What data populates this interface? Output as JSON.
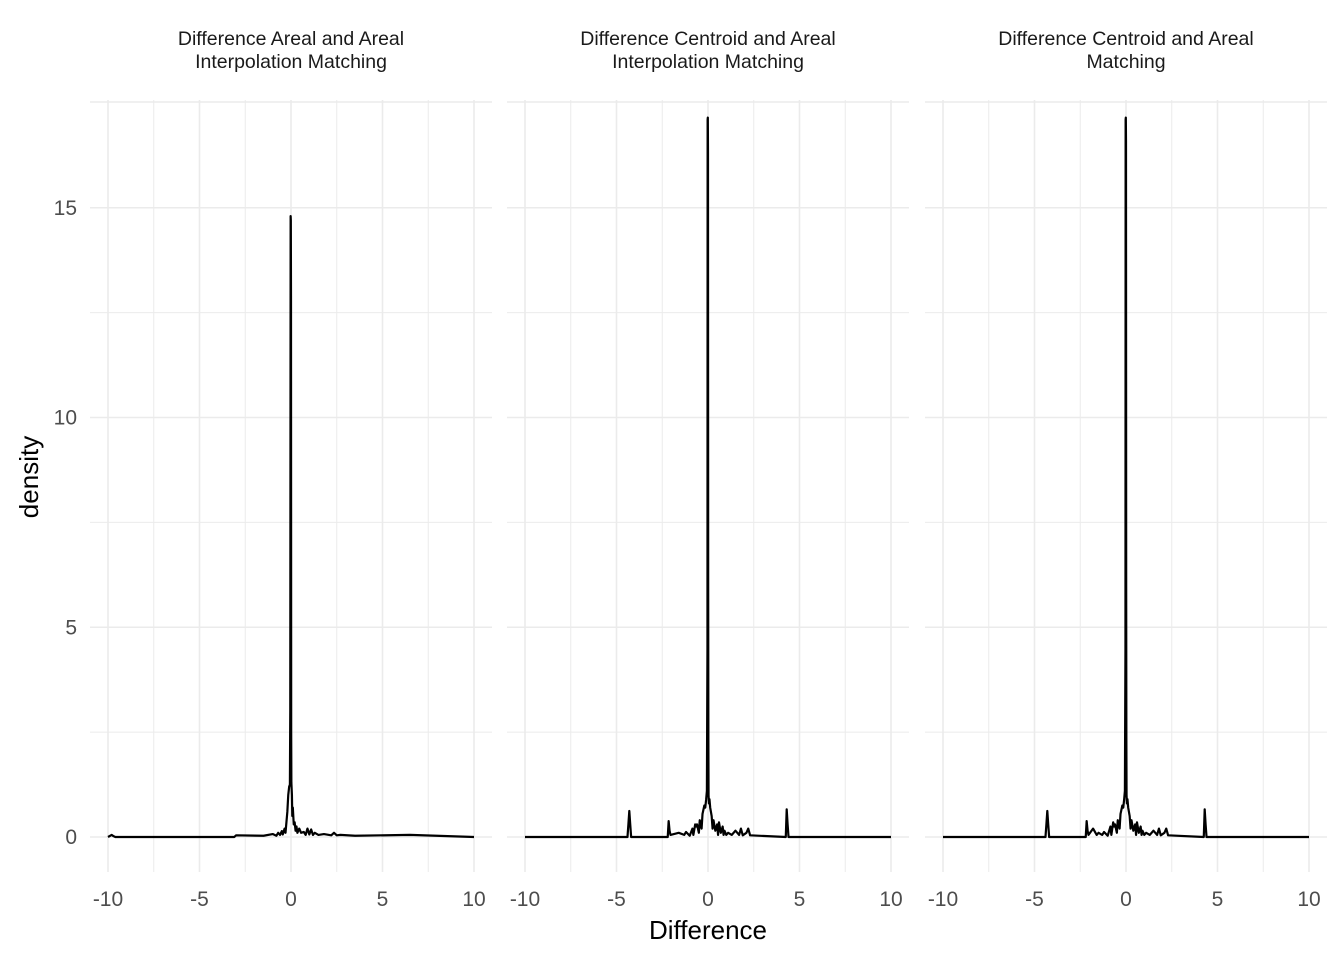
{
  "chart_data": {
    "type": "line",
    "xlabel": "Difference",
    "ylabel": "density",
    "xlim": [
      -10,
      10
    ],
    "ylim": [
      0,
      17.2
    ],
    "x_ticks": [
      -10,
      -5,
      0,
      5,
      10
    ],
    "x_tick_labels": [
      "-10",
      "-5",
      "0",
      "5",
      "10"
    ],
    "y_ticks": [
      0,
      5,
      10,
      15
    ],
    "y_tick_labels": [
      "0",
      "5",
      "10",
      "15"
    ],
    "grid": true,
    "line_color": "#000000",
    "grid_color": "#ebebeb",
    "panels": [
      {
        "title_lines": [
          "Difference Areal and Areal",
          "Interpolation Matching"
        ],
        "x": [
          -10,
          -9.8,
          -9.7,
          -9.6,
          -3.1,
          -3.0,
          -1.5,
          -1.0,
          -0.8,
          -0.7,
          -0.6,
          -0.5,
          -0.45,
          -0.35,
          -0.3,
          -0.25,
          -0.2,
          -0.15,
          -0.1,
          -0.06,
          -0.04,
          -0.02,
          -0.01,
          0.0,
          0.01,
          0.02,
          0.03,
          0.05,
          0.07,
          0.1,
          0.15,
          0.2,
          0.25,
          0.3,
          0.35,
          0.45,
          0.55,
          0.7,
          0.8,
          0.9,
          1.0,
          1.1,
          1.2,
          1.3,
          1.5,
          1.8,
          2.2,
          2.35,
          2.5,
          2.7,
          3.5,
          6.5,
          10
        ],
        "y": [
          0,
          0.05,
          0.02,
          0,
          0,
          0.04,
          0.03,
          0.07,
          0.03,
          0.1,
          0.05,
          0.14,
          0.06,
          0.2,
          0.1,
          0.35,
          0.6,
          1.0,
          1.2,
          1.25,
          3.0,
          14.8,
          14.7,
          12.9,
          2.5,
          1.3,
          1.2,
          1.0,
          0.5,
          0.7,
          0.3,
          0.35,
          0.15,
          0.25,
          0.1,
          0.2,
          0.1,
          0.12,
          0.05,
          0.2,
          0.06,
          0.18,
          0.05,
          0.1,
          0.05,
          0.07,
          0.04,
          0.1,
          0.04,
          0.05,
          0.03,
          0.05,
          0
        ]
      },
      {
        "title_lines": [
          "Difference Centroid and Areal",
          "Interpolation Matching"
        ],
        "x": [
          -10,
          -4.4,
          -4.35,
          -4.3,
          -4.25,
          -4.2,
          -2.2,
          -2.15,
          -2.1,
          -2.05,
          -1.6,
          -1.3,
          -1.2,
          -1.0,
          -0.85,
          -0.8,
          -0.7,
          -0.65,
          -0.6,
          -0.5,
          -0.45,
          -0.35,
          -0.3,
          -0.2,
          -0.15,
          -0.1,
          -0.06,
          -0.03,
          -0.02,
          -0.01,
          0.0,
          0.01,
          0.02,
          0.03,
          0.05,
          0.08,
          0.12,
          0.2,
          0.25,
          0.3,
          0.4,
          0.5,
          0.55,
          0.6,
          0.7,
          0.8,
          0.85,
          0.9,
          1.0,
          1.1,
          1.3,
          1.5,
          1.7,
          1.8,
          1.9,
          2.1,
          2.2,
          2.3,
          4.25,
          4.3,
          4.35,
          4.4,
          10
        ],
        "y": [
          0,
          0,
          0.3,
          0.62,
          0.3,
          0,
          0,
          0.38,
          0.15,
          0.05,
          0.1,
          0.05,
          0.12,
          0.03,
          0.2,
          0.05,
          0.3,
          0.25,
          0.3,
          0.1,
          0.4,
          0.2,
          0.55,
          0.75,
          0.7,
          0.9,
          1.1,
          4.5,
          17.1,
          17.15,
          16.3,
          6.0,
          2.3,
          1.0,
          0.8,
          0.9,
          0.7,
          0.5,
          0.2,
          0.4,
          0.15,
          0.3,
          0.05,
          0.35,
          0.1,
          0.25,
          0.05,
          0.15,
          0.05,
          0.1,
          0.05,
          0.15,
          0.05,
          0.2,
          0.04,
          0.1,
          0.2,
          0.04,
          0,
          0.66,
          0.3,
          0,
          0
        ]
      },
      {
        "title_lines": [
          "Difference Centroid and Areal",
          "Matching"
        ],
        "x": [
          -10,
          -4.4,
          -4.35,
          -4.3,
          -4.25,
          -4.2,
          -2.2,
          -2.15,
          -2.1,
          -2.05,
          -1.8,
          -1.6,
          -1.5,
          -1.3,
          -1.2,
          -1.0,
          -0.85,
          -0.8,
          -0.7,
          -0.65,
          -0.6,
          -0.5,
          -0.45,
          -0.35,
          -0.3,
          -0.2,
          -0.15,
          -0.1,
          -0.06,
          -0.03,
          -0.02,
          -0.01,
          0.0,
          0.01,
          0.02,
          0.03,
          0.05,
          0.08,
          0.12,
          0.2,
          0.25,
          0.3,
          0.4,
          0.5,
          0.55,
          0.6,
          0.7,
          0.8,
          0.85,
          0.9,
          1.0,
          1.1,
          1.3,
          1.5,
          1.7,
          1.8,
          1.9,
          2.1,
          2.2,
          2.3,
          4.25,
          4.3,
          4.35,
          4.4,
          10
        ],
        "y": [
          0,
          0,
          0.3,
          0.62,
          0.3,
          0,
          0,
          0.38,
          0.15,
          0.05,
          0.2,
          0.05,
          0.1,
          0.05,
          0.12,
          0.03,
          0.25,
          0.05,
          0.35,
          0.25,
          0.3,
          0.1,
          0.4,
          0.2,
          0.55,
          0.75,
          0.7,
          0.9,
          1.1,
          4.5,
          17.1,
          17.15,
          16.6,
          6.0,
          2.3,
          1.0,
          0.8,
          0.9,
          0.7,
          0.5,
          0.2,
          0.4,
          0.15,
          0.3,
          0.05,
          0.35,
          0.1,
          0.25,
          0.05,
          0.15,
          0.05,
          0.1,
          0.05,
          0.15,
          0.05,
          0.2,
          0.04,
          0.1,
          0.2,
          0.04,
          0,
          0.66,
          0.3,
          0,
          0
        ]
      }
    ]
  }
}
